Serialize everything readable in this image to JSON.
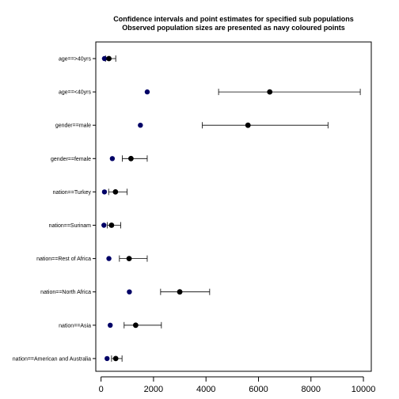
{
  "chart_data": {
    "type": "scatter",
    "title": "Confidence intervals and point estimates for specified sub populations",
    "subtitle": "Observed population sizes are presented as navy coloured points",
    "xlim": [
      -200,
      10300
    ],
    "x_ticks": [
      0,
      2000,
      4000,
      6000,
      8000,
      10000
    ],
    "x_tick_labels": [
      "0",
      "2000",
      "4000",
      "6000",
      "8000",
      "10000"
    ],
    "grid": false,
    "colors": {
      "observed": "#000066",
      "estimate": "#000000"
    },
    "categories": [
      "age==>40yrs",
      "age==<40yrs",
      "gender==male",
      "gender==female",
      "nation==Turkey",
      "nation==Surinam",
      "nation==Rest of Africa",
      "nation==North Africa",
      "nation==Asia",
      "nation==American and Australia"
    ],
    "observed": [
      130,
      1760,
      1500,
      430,
      130,
      110,
      300,
      1080,
      350,
      230
    ],
    "estimate": [
      300,
      6430,
      5600,
      1140,
      550,
      400,
      1070,
      3000,
      1320,
      560
    ],
    "ci_lower": [
      170,
      4480,
      3860,
      810,
      290,
      240,
      700,
      2270,
      880,
      400
    ],
    "ci_upper": [
      560,
      9880,
      8650,
      1760,
      990,
      750,
      1760,
      4140,
      2300,
      800
    ]
  }
}
